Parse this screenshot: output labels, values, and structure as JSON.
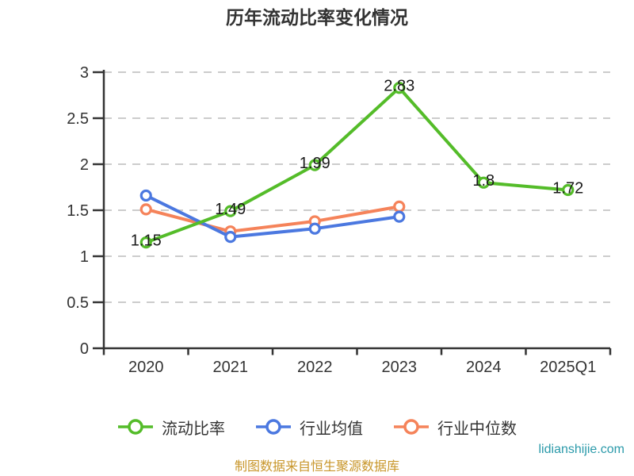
{
  "title": "历年流动比率变化情况",
  "chart_data": {
    "type": "line",
    "categories": [
      "2020",
      "2021",
      "2022",
      "2023",
      "2024",
      "2025Q1"
    ],
    "series": [
      {
        "name": "流动比率",
        "color": "#54BC29",
        "values": [
          1.15,
          1.49,
          1.99,
          2.83,
          1.8,
          1.72
        ],
        "labels": [
          "1.15",
          "1.49",
          "1.99",
          "2.83",
          "1.8",
          "1.72"
        ]
      },
      {
        "name": "行业均值",
        "color": "#4B78E0",
        "values": [
          1.66,
          1.21,
          1.3,
          1.43,
          null,
          null
        ],
        "labels": null
      },
      {
        "name": "行业中位数",
        "color": "#F5835A",
        "values": [
          1.51,
          1.27,
          1.38,
          1.54,
          null,
          null
        ],
        "labels": null
      }
    ],
    "ylim": [
      0,
      3
    ],
    "ytick_step": 0.5,
    "y_tick_labels": [
      "0",
      "0.5",
      "1",
      "1.5",
      "2",
      "2.5",
      "3"
    ],
    "grid": "horizontal-dashed",
    "legend_position": "bottom",
    "marker": "hollow-circle"
  },
  "colors": {
    "title": "#333333",
    "axis": "#333333",
    "grid": "#cccccc",
    "data_label": "#1a1a1a",
    "caption": "#C8962A",
    "watermark": "#2B9AAA"
  },
  "caption": "制图数据来自恒生聚源数据库",
  "watermark": "lidianshijie.com"
}
